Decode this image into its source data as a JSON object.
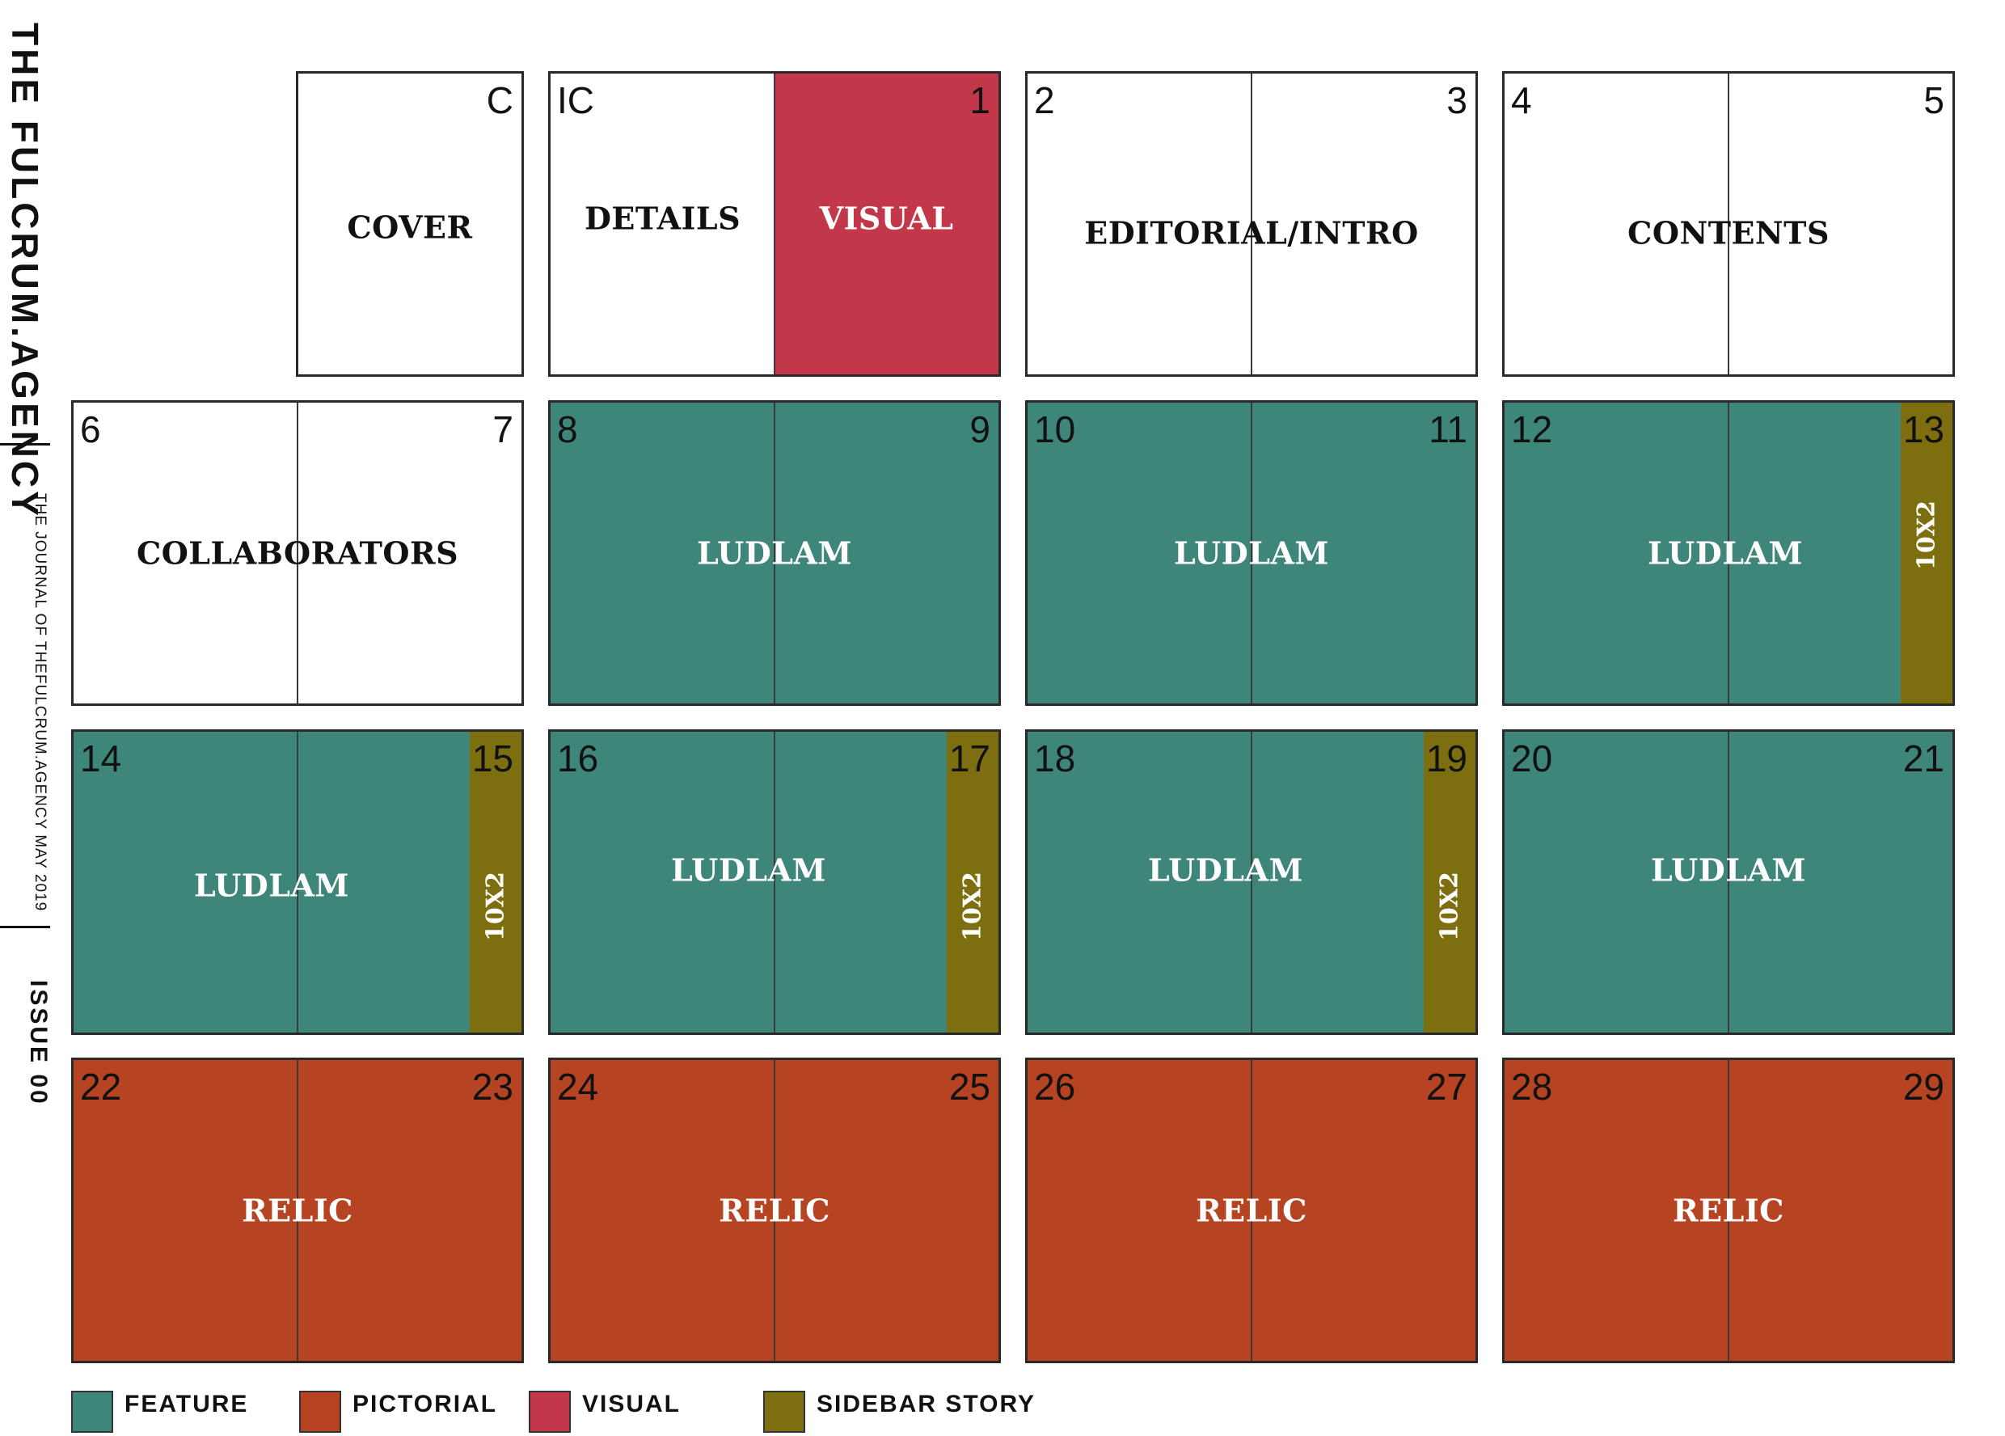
{
  "branding": {
    "title": "THE FULCRUM.AGENCY",
    "journal_line": "THE JOURNAL OF THEFULCRUM.AGENCY MAY 2019",
    "issue": "ISSUE 00"
  },
  "colors": {
    "feature": "#3f867a",
    "pictorial": "#b64321",
    "visual": "#c3374a",
    "sidebar_story": "#7d6f10",
    "blank": "#ffffff"
  },
  "spreads": [
    {
      "id": "cover",
      "label": "COVER",
      "left_page": "",
      "right_page": "C",
      "single": true,
      "left_color": "blank",
      "right_color": "blank"
    },
    {
      "id": "details-visual",
      "left_page": "IC",
      "right_page": "1",
      "left_color": "blank",
      "right_color": "visual",
      "left_label": "DETAILS",
      "right_label": "VISUAL"
    },
    {
      "id": "editorial",
      "label": "EDITORIAL/INTRO",
      "left_page": "2",
      "right_page": "3",
      "left_color": "blank",
      "right_color": "blank"
    },
    {
      "id": "contents",
      "label": "CONTENTS",
      "left_page": "4",
      "right_page": "5",
      "left_color": "blank",
      "right_color": "blank"
    },
    {
      "id": "collaborators",
      "label": "COLLABORATORS",
      "left_page": "6",
      "right_page": "7",
      "left_color": "blank",
      "right_color": "blank"
    },
    {
      "id": "ludlam-8",
      "label": "LUDLAM",
      "left_page": "8",
      "right_page": "9",
      "left_color": "feature",
      "right_color": "feature"
    },
    {
      "id": "ludlam-10",
      "label": "LUDLAM",
      "left_page": "10",
      "right_page": "11",
      "left_color": "feature",
      "right_color": "feature"
    },
    {
      "id": "ludlam-12",
      "label": "LUDLAM",
      "left_page": "12",
      "right_page": "13",
      "left_color": "feature",
      "right_color": "feature",
      "sidebar": "10X2"
    },
    {
      "id": "ludlam-14",
      "label": "LUDLAM",
      "left_page": "14",
      "right_page": "15",
      "left_color": "feature",
      "right_color": "feature",
      "sidebar": "10X2"
    },
    {
      "id": "ludlam-16",
      "label": "LUDLAM",
      "left_page": "16",
      "right_page": "17",
      "left_color": "feature",
      "right_color": "feature",
      "sidebar": "10X2"
    },
    {
      "id": "ludlam-18",
      "label": "LUDLAM",
      "left_page": "18",
      "right_page": "19",
      "left_color": "feature",
      "right_color": "feature",
      "sidebar": "10X2"
    },
    {
      "id": "ludlam-20",
      "label": "LUDLAM",
      "left_page": "20",
      "right_page": "21",
      "left_color": "feature",
      "right_color": "feature"
    },
    {
      "id": "relic-22",
      "label": "RELIC",
      "left_page": "22",
      "right_page": "23",
      "left_color": "pictorial",
      "right_color": "pictorial"
    },
    {
      "id": "relic-24",
      "label": "RELIC",
      "left_page": "24",
      "right_page": "25",
      "left_color": "pictorial",
      "right_color": "pictorial"
    },
    {
      "id": "relic-26",
      "label": "RELIC",
      "left_page": "26",
      "right_page": "27",
      "left_color": "pictorial",
      "right_color": "pictorial"
    },
    {
      "id": "relic-28",
      "label": "RELIC",
      "left_page": "28",
      "right_page": "29",
      "left_color": "pictorial",
      "right_color": "pictorial"
    }
  ],
  "legend": [
    {
      "label": "FEATURE",
      "color": "feature"
    },
    {
      "label": "PICTORIAL",
      "color": "pictorial"
    },
    {
      "label": "VISUAL",
      "color": "visual"
    },
    {
      "label": "SIDEBAR STORY",
      "color": "sidebar_story"
    }
  ]
}
